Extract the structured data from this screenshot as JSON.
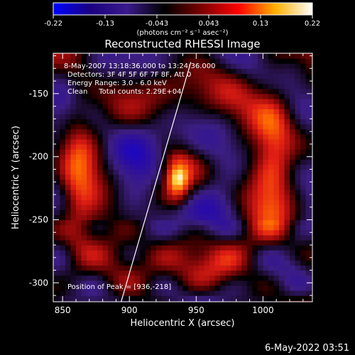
{
  "chart_data": {
    "type": "heatmap",
    "title": "Reconstructed RHESSI Image",
    "xlabel": "Heliocentric X (arcsec)",
    "ylabel": "Heliocentric Y (arcsec)",
    "xlim": [
      843,
      1037
    ],
    "ylim": [
      -315,
      -118
    ],
    "x_ticks": [
      850,
      900,
      950,
      1000
    ],
    "y_ticks": [
      -150,
      -200,
      -250,
      -300
    ],
    "colorbar": {
      "range": [
        -0.22,
        0.22
      ],
      "ticks": [
        "-0.22",
        "-0.13",
        "-0.043",
        "0.043",
        "0.13",
        "0.22"
      ],
      "units": "(photons cm⁻² s⁻¹ asec⁻²)",
      "colors": [
        "#0000ff",
        "#1a0080",
        "#3a1a8c",
        "#000000",
        "#7a0000",
        "#ff0000",
        "#ffb000",
        "#ffffff"
      ]
    },
    "annotations": [
      "8-May-2007 13:18:36.000 to 13:24:36.000",
      "Detectors: 3F 4F 5F 6F 7F 8F, Att 0",
      "Energy Range: 3.0 - 6.0 keV",
      "Clean     Total counts: 2.29E+04"
    ],
    "peak_label": "Position of Peak = [936,-218]",
    "peak": {
      "x": 936,
      "y": -218,
      "value": 0.22
    },
    "grid": false,
    "limb_line": {
      "x1": 893,
      "y1": -318,
      "x2": 946,
      "y2": -125
    }
  },
  "footer": {
    "date": "6-May-2022 03:51"
  }
}
